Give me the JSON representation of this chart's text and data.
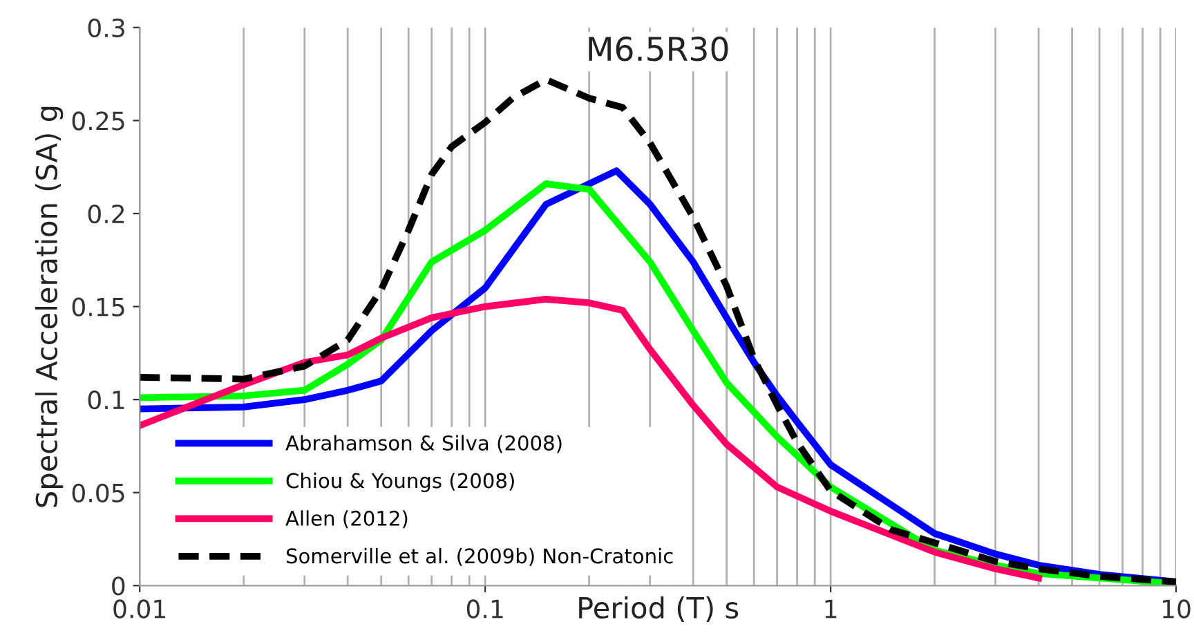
{
  "chart_data": {
    "type": "line",
    "title": "M6.5R30",
    "xlabel": "Period (T) s",
    "ylabel": "Spectral Acceleration (SA) g",
    "log": "x",
    "grid": "x",
    "legend": "bottom left",
    "xlim": [
      0.01,
      10
    ],
    "xticks": [
      0.01,
      {
        "value": 0.02,
        "label": null
      },
      {
        "value": 0.03,
        "label": null
      },
      {
        "value": 0.04,
        "label": null
      },
      {
        "value": 0.05,
        "label": null
      },
      {
        "value": 0.06,
        "label": null
      },
      {
        "value": 0.07,
        "label": null
      },
      {
        "value": 0.08,
        "label": null
      },
      {
        "value": 0.09,
        "label": null
      },
      0.1,
      {
        "value": 0.2,
        "label": null
      },
      {
        "value": 0.3,
        "label": null
      },
      {
        "value": 0.4,
        "label": null
      },
      {
        "value": 0.5,
        "label": null
      },
      {
        "value": 0.6,
        "label": null
      },
      {
        "value": 0.7,
        "label": null
      },
      {
        "value": 0.8,
        "label": null
      },
      {
        "value": 0.9,
        "label": null
      },
      1,
      {
        "value": 2,
        "label": null
      },
      {
        "value": 3,
        "label": null
      },
      {
        "value": 4,
        "label": null
      },
      {
        "value": 5,
        "label": null
      },
      {
        "value": 6,
        "label": null
      },
      {
        "value": 7,
        "label": null
      },
      {
        "value": 8,
        "label": null
      },
      {
        "value": 9,
        "label": null
      },
      10
    ],
    "ylim": [
      0,
      0.3
    ],
    "yticks": [
      0,
      0.05,
      0.1,
      0.15,
      0.2,
      0.25,
      0.3
    ],
    "series": [
      {
        "name": "Abrahamson & Silva (2008)",
        "color": "#0000ff",
        "line_style": "solid",
        "x": [
          0.01,
          0.02,
          0.03,
          0.04,
          0.05,
          0.07,
          0.1,
          0.15,
          0.24,
          0.3,
          0.4,
          0.5,
          0.6,
          0.7,
          0.8,
          1,
          2,
          3,
          4,
          6,
          10
        ],
        "values": [
          0.095,
          0.096,
          0.1,
          0.105,
          0.11,
          0.137,
          0.16,
          0.205,
          0.223,
          0.205,
          0.174,
          0.144,
          0.12,
          0.102,
          0.088,
          0.065,
          0.028,
          0.017,
          0.011,
          0.006,
          0.002
        ]
      },
      {
        "name": "Chiou & Youngs (2008)",
        "color": "#00ff00",
        "line_style": "solid",
        "x": [
          0.01,
          0.02,
          0.03,
          0.04,
          0.05,
          0.07,
          0.1,
          0.15,
          0.2,
          0.3,
          0.4,
          0.5,
          0.7,
          1,
          2,
          3,
          4,
          10
        ],
        "values": [
          0.101,
          0.102,
          0.105,
          0.119,
          0.132,
          0.174,
          0.191,
          0.216,
          0.213,
          0.174,
          0.137,
          0.109,
          0.08,
          0.053,
          0.019,
          0.011,
          0.0065,
          0.001
        ]
      },
      {
        "name": "Allen (2012)",
        "color": "#ff0066",
        "line_style": "solid",
        "x": [
          0.01,
          0.02,
          0.03,
          0.04,
          0.05,
          0.07,
          0.1,
          0.15,
          0.2,
          0.25,
          0.3,
          0.4,
          0.5,
          0.7,
          1,
          2,
          3,
          4
        ],
        "values": [
          0.086,
          0.108,
          0.12,
          0.124,
          0.133,
          0.144,
          0.15,
          0.154,
          0.152,
          0.148,
          0.127,
          0.097,
          0.076,
          0.053,
          0.04,
          0.018,
          0.009,
          0.004
        ]
      },
      {
        "name": "Somerville et al. (2009b) Non-Cratonic",
        "color": "#000000",
        "line_style": "dashed",
        "x": [
          0.01,
          0.02,
          0.03,
          0.04,
          0.05,
          0.06,
          0.07,
          0.08,
          0.1,
          0.12,
          0.15,
          0.2,
          0.25,
          0.3,
          0.4,
          0.5,
          0.6,
          0.7,
          0.8,
          1,
          1.5,
          2,
          3,
          4,
          6,
          10
        ],
        "values": [
          0.112,
          0.111,
          0.118,
          0.132,
          0.159,
          0.191,
          0.221,
          0.236,
          0.249,
          0.262,
          0.272,
          0.262,
          0.257,
          0.238,
          0.198,
          0.161,
          0.122,
          0.097,
          0.077,
          0.051,
          0.03,
          0.023,
          0.013,
          0.009,
          0.005,
          0.002
        ]
      }
    ]
  }
}
